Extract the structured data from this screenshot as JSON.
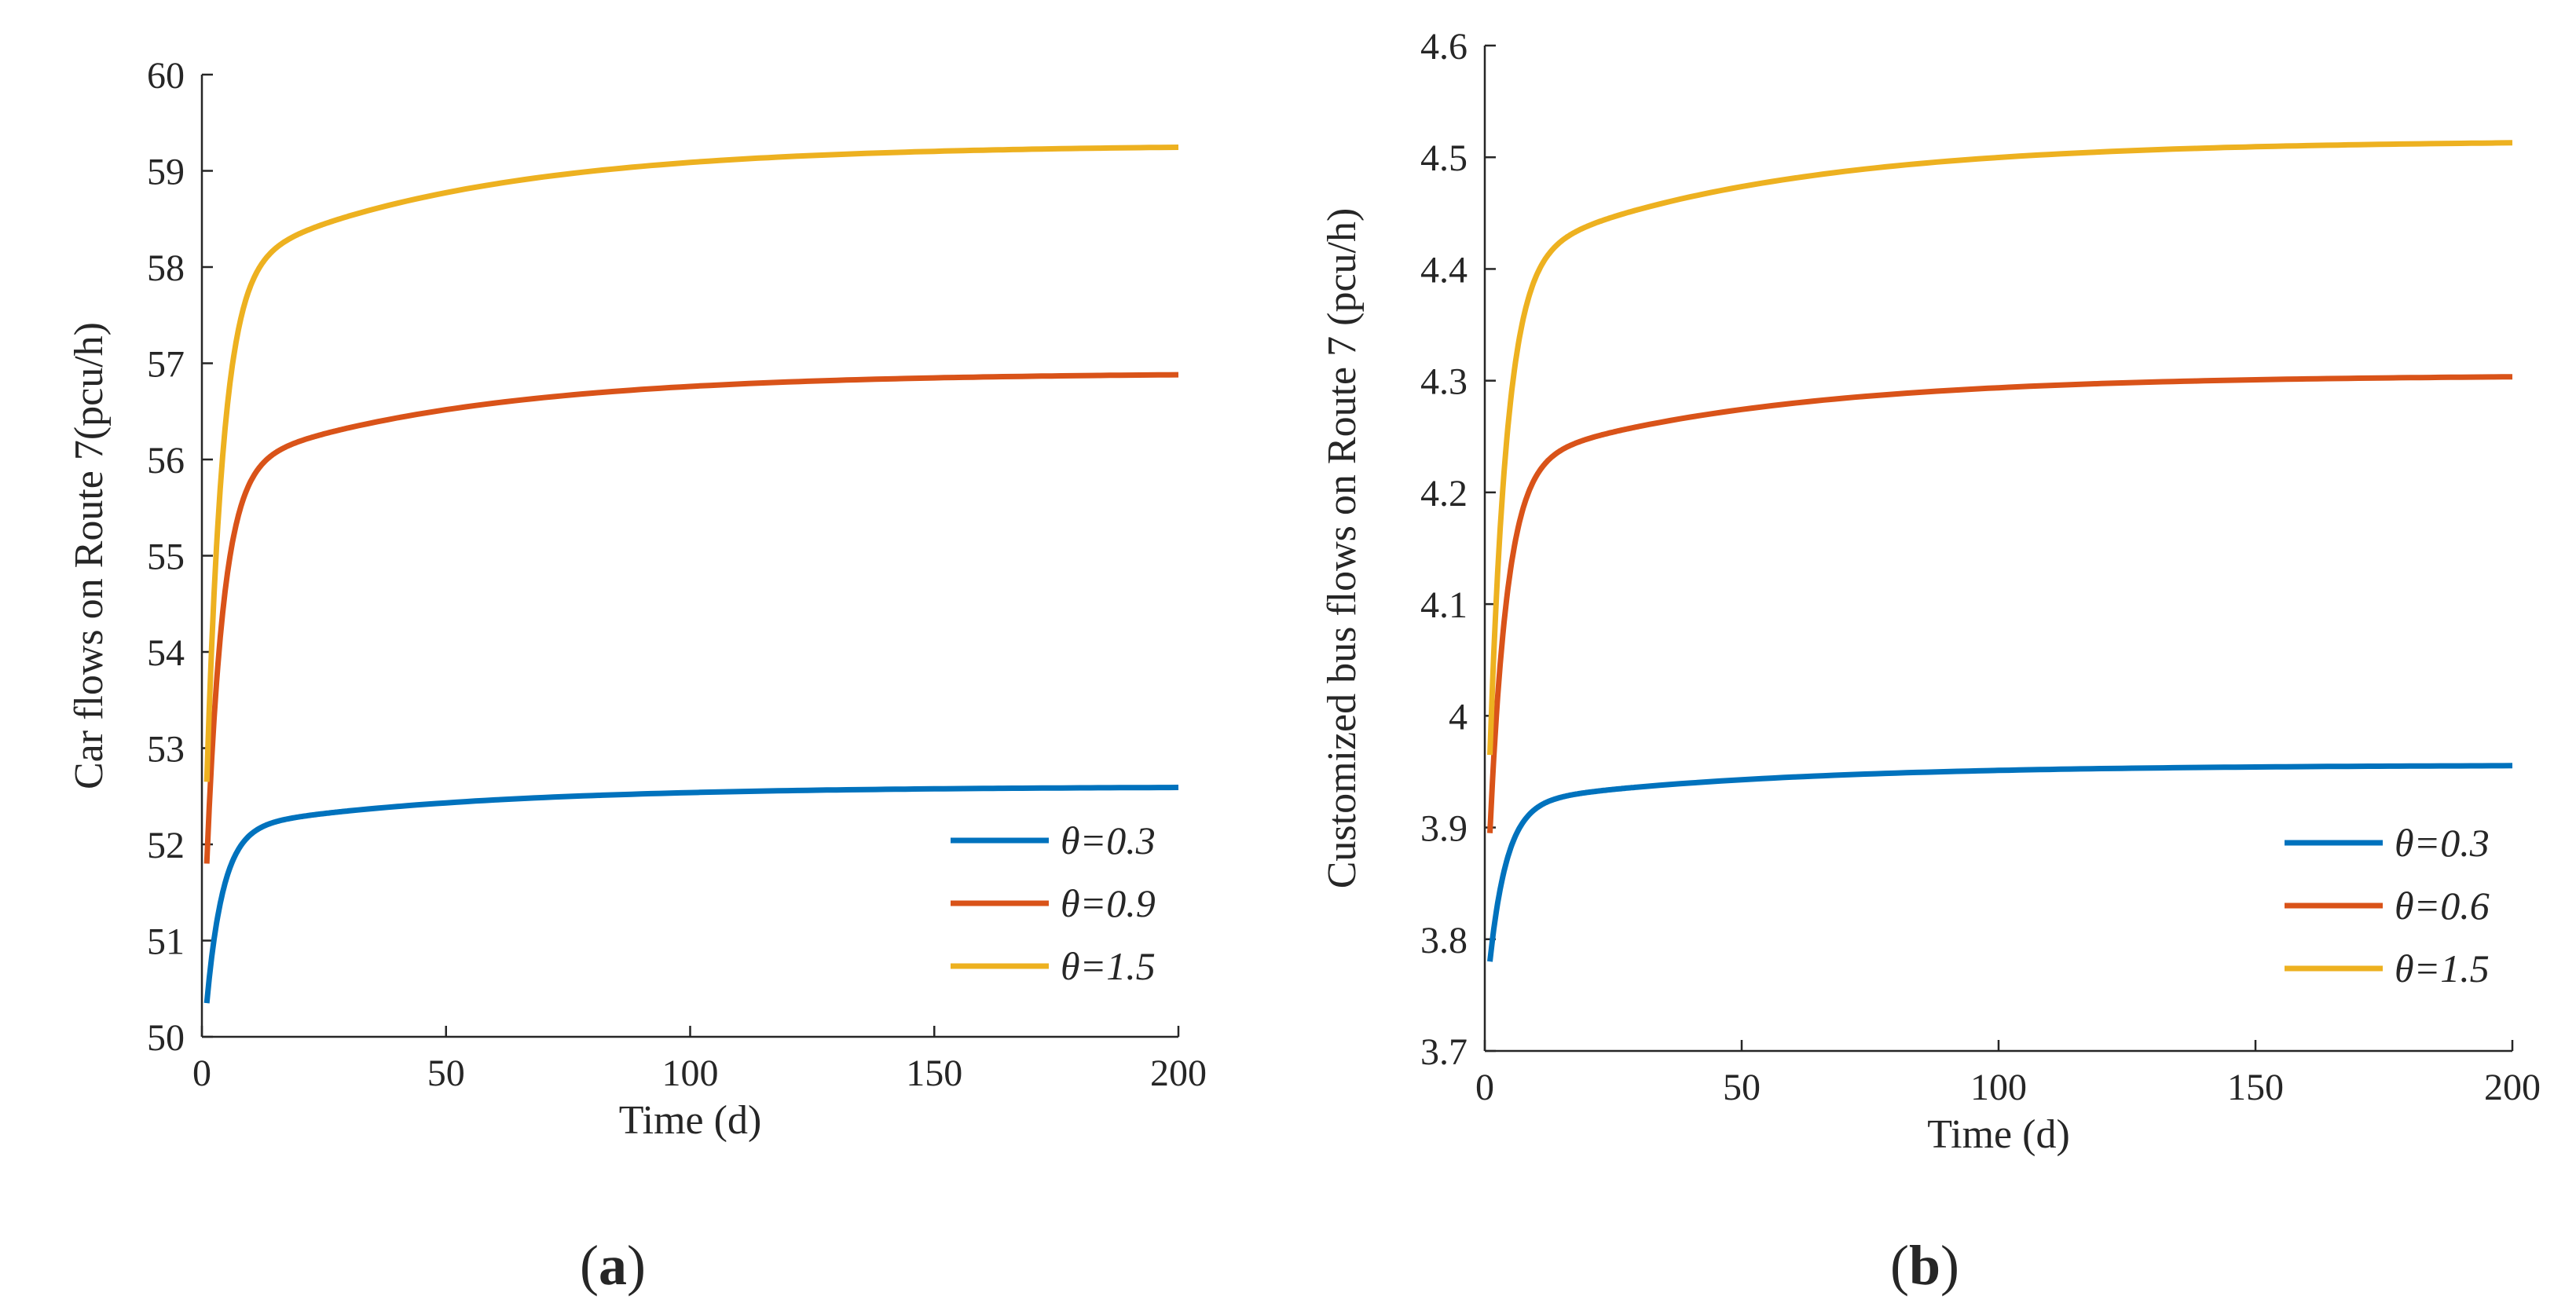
{
  "chart_data": [
    {
      "type": "line",
      "panel_label": {
        "open": "(",
        "letter": "a",
        "close": ")"
      },
      "xlabel": "Time (d)",
      "ylabel": "Car flows on Route 7(pcu/h)",
      "xlim": [
        0,
        200
      ],
      "ylim": [
        50,
        60
      ],
      "xticks": [
        0,
        50,
        100,
        150,
        200
      ],
      "yticks": [
        50,
        51,
        52,
        53,
        54,
        55,
        56,
        57,
        58,
        59,
        60
      ],
      "legend_position": "bottom-right",
      "series": [
        {
          "name": "θ=0.3",
          "color": "#0072BD",
          "start": 50.35,
          "final": 52.6,
          "k": 0.3
        },
        {
          "name": "θ=0.9",
          "color": "#D95319",
          "start": 51.8,
          "final": 56.9,
          "k": 0.3
        },
        {
          "name": "θ=1.5",
          "color": "#EDB120",
          "start": 52.65,
          "final": 59.27,
          "k": 0.3
        }
      ]
    },
    {
      "type": "line",
      "panel_label": {
        "open": "(",
        "letter": "b",
        "close": ")"
      },
      "xlabel": "Time (d)",
      "ylabel": "Customized bus flows on Route 7 (pcu/h)",
      "xlim": [
        0,
        200
      ],
      "ylim": [
        3.7,
        4.6
      ],
      "xticks": [
        0,
        50,
        100,
        150,
        200
      ],
      "yticks": [
        3.7,
        3.8,
        3.9,
        4,
        4.1,
        4.2,
        4.3,
        4.4,
        4.5,
        4.6
      ],
      "legend_position": "bottom-right",
      "series": [
        {
          "name": "θ=0.3",
          "color": "#0072BD",
          "start": 3.78,
          "final": 3.956,
          "k": 0.3
        },
        {
          "name": "θ=0.6",
          "color": "#D95319",
          "start": 3.895,
          "final": 4.305,
          "k": 0.3
        },
        {
          "name": "θ=1.5",
          "color": "#EDB120",
          "start": 3.965,
          "final": 4.515,
          "k": 0.3
        }
      ]
    }
  ]
}
